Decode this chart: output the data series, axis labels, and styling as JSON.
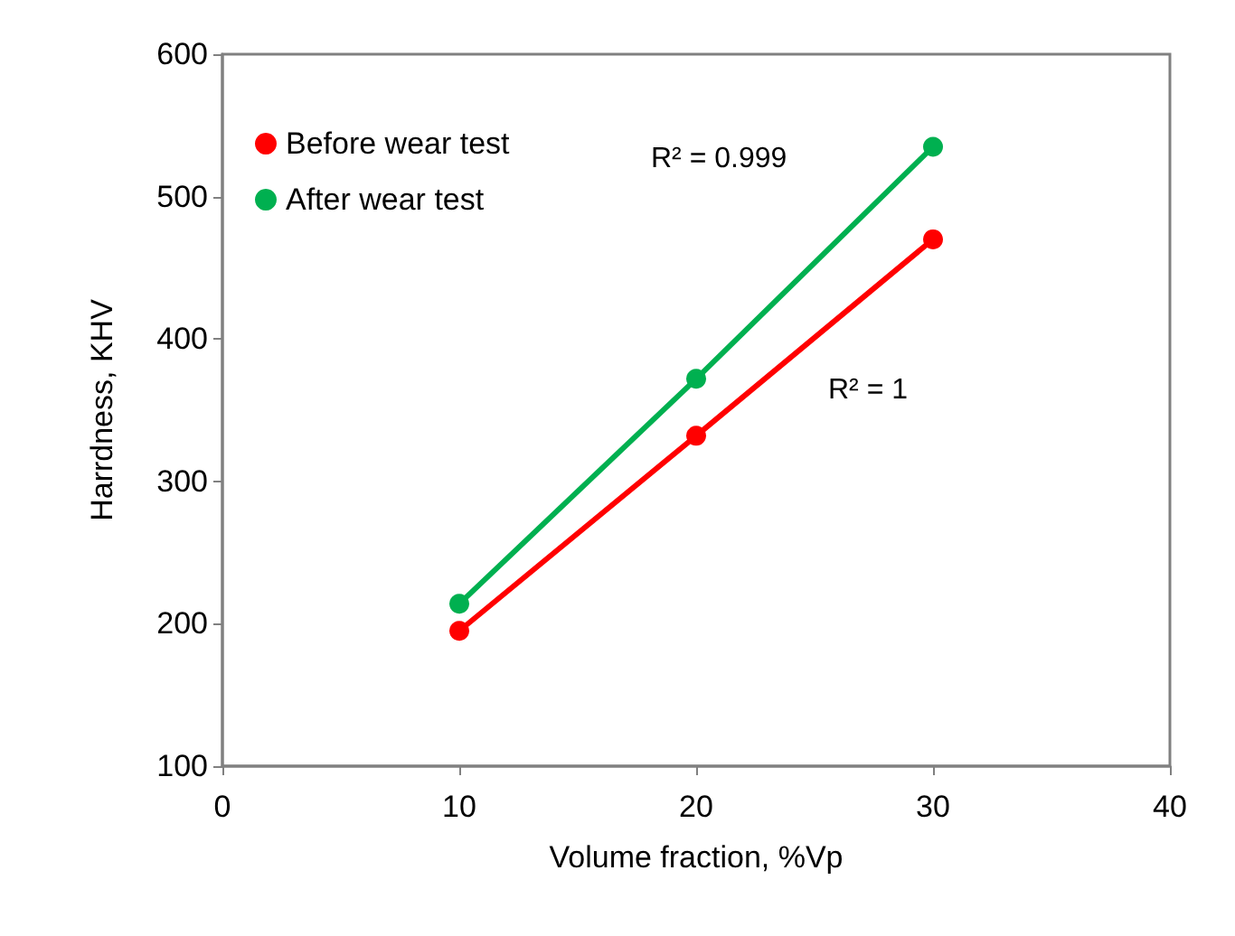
{
  "chart_data": {
    "type": "line",
    "xlabel": "Volume fraction, %Vp",
    "ylabel": "Harrdness, KHV",
    "x": [
      10,
      20,
      30
    ],
    "series": [
      {
        "name": "Before wear test",
        "color": "#ff0000",
        "values": [
          195,
          332,
          470
        ]
      },
      {
        "name": "After wear test",
        "color": "#00b050",
        "values": [
          214,
          372,
          535
        ]
      }
    ],
    "xlim": [
      0,
      40
    ],
    "xticks": [
      0,
      10,
      20,
      30,
      40
    ],
    "ylim": [
      100,
      600
    ],
    "yticks": [
      100,
      200,
      300,
      400,
      500,
      600
    ],
    "annotations": [
      "R² = 0.999",
      "R² = 1"
    ],
    "legend": "top left",
    "marker": "circle",
    "line_style": "solid",
    "grid": false
  }
}
